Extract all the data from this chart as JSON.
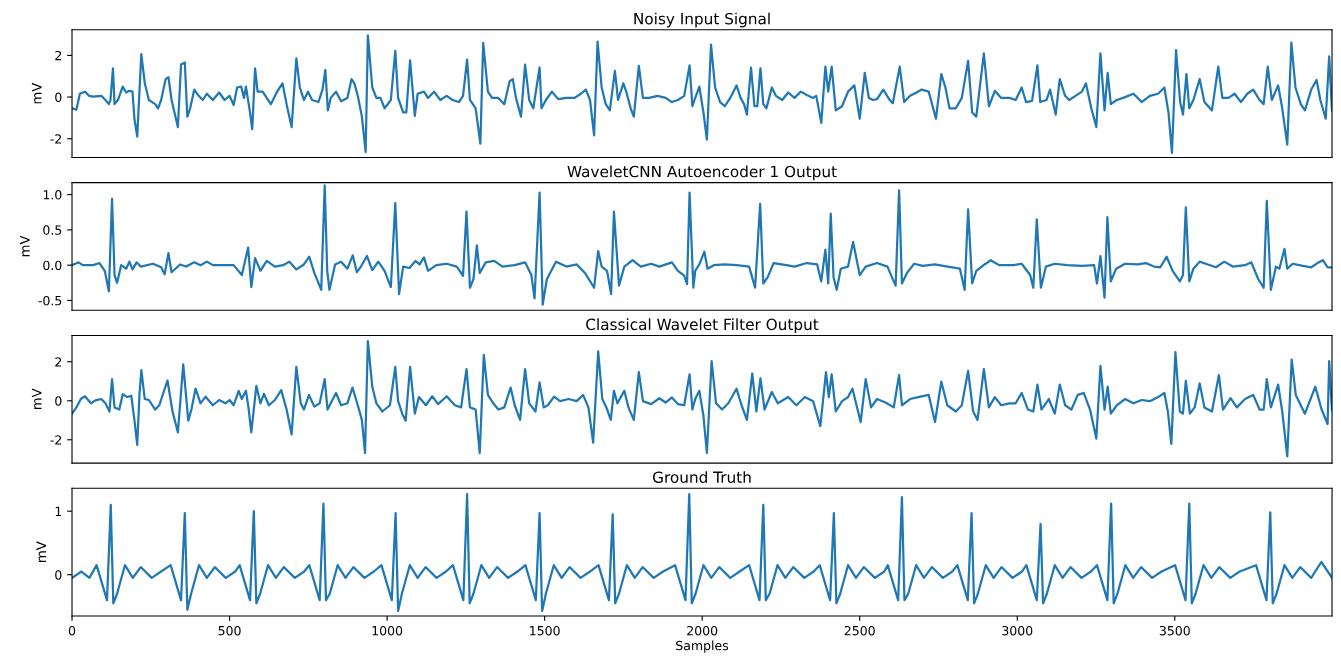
{
  "chart_data": [
    {
      "type": "line",
      "title": "Noisy Input Signal",
      "ylabel": "mV",
      "xlim": [
        0,
        3999
      ],
      "ylim": [
        -2.9,
        3.23
      ],
      "yticks": [
        -2,
        0,
        2
      ],
      "tick_labels": "y",
      "series": [
        {
          "color": "#1f77b4",
          "x": [
            0,
            14,
            25,
            41,
            54,
            67,
            93,
            106,
            117,
            122,
            130,
            135,
            146,
            161,
            172,
            182,
            192,
            198,
            207,
            214,
            220,
            231,
            244,
            264,
            273,
            283,
            297,
            306,
            316,
            336,
            346,
            358,
            366,
            375,
            388,
            402,
            415,
            428,
            447,
            467,
            484,
            500,
            513,
            524,
            537,
            546,
            552,
            563,
            572,
            581,
            589,
            605,
            618,
            631,
            651,
            668,
            681,
            697,
            712,
            723,
            736,
            749,
            762,
            782,
            795,
            804,
            812,
            821,
            838,
            854,
            874,
            887,
            896,
            907,
            920,
            932,
            939,
            953,
            966,
            979,
            992,
            1012,
            1026,
            1035,
            1051,
            1061,
            1073,
            1088,
            1097,
            1117,
            1130,
            1149,
            1169,
            1189,
            1208,
            1228,
            1241,
            1254,
            1263,
            1281,
            1296,
            1305,
            1320,
            1333,
            1353,
            1372,
            1389,
            1399,
            1409,
            1425,
            1438,
            1451,
            1464,
            1484,
            1490,
            1504,
            1523,
            1543,
            1569,
            1595,
            1615,
            1631,
            1644,
            1657,
            1668,
            1681,
            1694,
            1707,
            1723,
            1733,
            1750,
            1759,
            1773,
            1783,
            1799,
            1812,
            1832,
            1858,
            1884,
            1904,
            1923,
            1943,
            1960,
            1969,
            1978,
            1991,
            2004,
            2015,
            2028,
            2041,
            2057,
            2072,
            2089,
            2109,
            2122,
            2133,
            2142,
            2155,
            2166,
            2175,
            2185,
            2194,
            2204,
            2221,
            2234,
            2254,
            2273,
            2293,
            2313,
            2332,
            2352,
            2362,
            2378,
            2391,
            2400,
            2411,
            2424,
            2444,
            2463,
            2483,
            2500,
            2516,
            2529,
            2542,
            2555,
            2575,
            2595,
            2605,
            2627,
            2641,
            2660,
            2680,
            2697,
            2719,
            2742,
            2759,
            2772,
            2785,
            2805,
            2824,
            2844,
            2857,
            2870,
            2894,
            2910,
            2929,
            2949,
            2975,
            2995,
            3014,
            3028,
            3047,
            3064,
            3073,
            3093,
            3104,
            3122,
            3135,
            3152,
            3165,
            3185,
            3205,
            3218,
            3235,
            3251,
            3264,
            3277,
            3287,
            3297,
            3316,
            3336,
            3369,
            3395,
            3421,
            3447,
            3467,
            3480,
            3491,
            3504,
            3517,
            3526,
            3537,
            3546,
            3559,
            3579,
            3594,
            3618,
            3638,
            3651,
            3670,
            3690,
            3710,
            3730,
            3749,
            3769,
            3782,
            3795,
            3808,
            3828,
            3841,
            3857,
            3870,
            3883,
            3900,
            3913,
            3933,
            3950,
            3962,
            3979,
            3990,
            3999
          ],
          "values": [
            -0.54,
            -0.6,
            0.16,
            0.26,
            0.06,
            0.02,
            0.06,
            -0.14,
            -0.34,
            -0.14,
            1.38,
            -0.34,
            -0.14,
            0.5,
            0.22,
            0.3,
            0.26,
            -1.04,
            -1.9,
            0.26,
            2.06,
            0.66,
            -0.14,
            -0.34,
            -0.54,
            -0.14,
            0.86,
            0.96,
            -0.14,
            -1.44,
            1.56,
            1.66,
            -0.94,
            -0.54,
            0.36,
            0.06,
            -0.14,
            0.16,
            -0.14,
            0.22,
            -0.14,
            0.06,
            -0.38,
            0.46,
            0.5,
            -0.04,
            0.5,
            -0.54,
            -1.54,
            1.38,
            0.26,
            0.26,
            -0.04,
            -0.34,
            0.26,
            0.66,
            -0.34,
            -1.44,
            1.86,
            0.46,
            -0.14,
            0.26,
            -0.14,
            -0.24,
            0.36,
            1.3,
            -0.64,
            -0.04,
            0.26,
            -0.2,
            -0.04,
            0.86,
            0.66,
            0.06,
            -0.94,
            -2.64,
            2.96,
            0.46,
            -0.04,
            -0.04,
            -0.54,
            -0.14,
            2.22,
            -0.04,
            -0.74,
            -0.74,
            1.76,
            -0.9,
            0.16,
            0.26,
            -0.04,
            0.26,
            -0.14,
            0.06,
            -0.14,
            -0.24,
            0.06,
            1.8,
            -0.14,
            -0.54,
            -2.24,
            2.6,
            0.26,
            -0.04,
            -0.04,
            -0.34,
            0.76,
            0.86,
            -0.04,
            -0.94,
            1.56,
            -0.14,
            -0.54,
            1.42,
            -0.54,
            -0.14,
            0.26,
            -0.1,
            -0.04,
            -0.04,
            0.16,
            0.36,
            -0.14,
            -1.84,
            2.66,
            0.46,
            -0.34,
            -0.64,
            1.26,
            -0.14,
            0.66,
            0.26,
            -0.54,
            -0.94,
            1.5,
            -0.04,
            -0.04,
            0.06,
            -0.04,
            -0.24,
            -0.14,
            0.06,
            1.52,
            -0.44,
            -0.04,
            0.5,
            -0.74,
            -2.04,
            2.52,
            0.46,
            -0.24,
            -0.44,
            -0.04,
            0.56,
            -0.04,
            -0.34,
            -0.84,
            1.42,
            -0.44,
            -0.44,
            1.38,
            -0.34,
            -0.54,
            0.46,
            0.06,
            -0.14,
            0.22,
            -0.04,
            0.26,
            0.1,
            -0.04,
            0.06,
            -1.24,
            1.46,
            0.26,
            1.46,
            -0.64,
            -0.44,
            0.26,
            0.56,
            -1.04,
            1.16,
            -0.04,
            -0.14,
            -0.1,
            0.36,
            -0.14,
            -0.3,
            1.46,
            -0.24,
            0.06,
            0.22,
            0.36,
            0.26,
            -1.04,
            1.1,
            0.46,
            -0.54,
            -0.54,
            -0.04,
            1.74,
            -0.74,
            -0.94,
            2.1,
            -0.44,
            0.3,
            -0.04,
            -0.04,
            -0.14,
            0.46,
            -0.24,
            -0.18,
            1.52,
            -0.24,
            -0.14,
            0.36,
            -0.84,
            0.86,
            0.06,
            -0.14,
            0.06,
            0.26,
            0.66,
            -0.54,
            -1.44,
            2.1,
            -0.64,
            1.16,
            -0.34,
            -0.14,
            -0.04,
            0.16,
            -0.24,
            0.06,
            0.16,
            0.46,
            -0.74,
            -2.68,
            2.26,
            -0.24,
            -0.84,
            1.1,
            -0.54,
            -0.14,
            0.86,
            -0.24,
            -0.64,
            1.46,
            -0.04,
            -0.04,
            0.16,
            -0.24,
            0.16,
            0.36,
            -0.14,
            -0.34,
            1.46,
            -0.14,
            0.56,
            -0.54,
            -2.28,
            2.62,
            0.46,
            -0.34,
            -0.64,
            0.36,
            0.82,
            -0.14,
            -1.04,
            1.96,
            -0.64
          ]
        }
      ]
    },
    {
      "type": "line",
      "title": "WaveletCNN Autoencoder 1 Output",
      "ylabel": "mV",
      "xlim": [
        0,
        3999
      ],
      "ylim": [
        -0.64,
        1.17
      ],
      "yticks": [
        -0.5,
        {
          "value": 0,
          "label": "0.0"
        },
        0.5,
        {
          "value": 1,
          "label": "1.0"
        }
      ],
      "tick_labels": "y",
      "series": [
        {
          "color": "#1f77b4",
          "x": [
            0,
            21,
            34,
            67,
            87,
            104,
            117,
            127,
            135,
            143,
            156,
            172,
            182,
            192,
            205,
            218,
            257,
            283,
            294,
            306,
            316,
            343,
            362,
            388,
            408,
            428,
            447,
            513,
            539,
            559,
            569,
            581,
            598,
            618,
            644,
            670,
            690,
            712,
            736,
            753,
            769,
            791,
            802,
            810,
            817,
            835,
            854,
            874,
            891,
            904,
            917,
            936,
            953,
            972,
            992,
            1012,
            1026,
            1038,
            1051,
            1071,
            1090,
            1103,
            1117,
            1130,
            1156,
            1189,
            1221,
            1241,
            1252,
            1263,
            1274,
            1285,
            1294,
            1313,
            1340,
            1366,
            1405,
            1438,
            1458,
            1468,
            1484,
            1494,
            1507,
            1536,
            1569,
            1602,
            1628,
            1657,
            1670,
            1681,
            1698,
            1711,
            1720,
            1736,
            1753,
            1779,
            1805,
            1838,
            1864,
            1904,
            1923,
            1943,
            1952,
            1960,
            1972,
            1978,
            1991,
            2007,
            2017,
            2037,
            2070,
            2109,
            2149,
            2168,
            2184,
            2194,
            2208,
            2227,
            2267,
            2293,
            2332,
            2365,
            2378,
            2391,
            2400,
            2408,
            2417,
            2427,
            2440,
            2463,
            2479,
            2500,
            2519,
            2555,
            2588,
            2608,
            2614,
            2625,
            2634,
            2650,
            2673,
            2700,
            2739,
            2765,
            2818,
            2833,
            2844,
            2857,
            2870,
            2896,
            2916,
            2942,
            2988,
            3014,
            3041,
            3051,
            3062,
            3075,
            3091,
            3119,
            3159,
            3205,
            3244,
            3253,
            3264,
            3277,
            3286,
            3297,
            3314,
            3342,
            3382,
            3408,
            3434,
            3454,
            3474,
            3493,
            3516,
            3526,
            3535,
            3546,
            3559,
            3579,
            3605,
            3631,
            3657,
            3684,
            3723,
            3743,
            3765,
            3782,
            3792,
            3805,
            3821,
            3832,
            3848,
            3857,
            3874,
            3907,
            3933,
            3953,
            3970,
            3985,
            3999
          ],
          "values": [
            0,
            0.04,
            0,
            0,
            0.03,
            -0.08,
            -0.37,
            0.94,
            -0.14,
            -0.25,
            0,
            -0.05,
            0.05,
            -0.06,
            0.04,
            -0.02,
            0.02,
            -0.03,
            -0.13,
            0.17,
            -0.1,
            0.01,
            -0.02,
            0.04,
            0,
            0.05,
            0,
            0,
            -0.14,
            0.25,
            -0.31,
            0.1,
            -0.08,
            0.06,
            -0.02,
            0,
            0.05,
            -0.06,
            0.01,
            0.12,
            -0.11,
            -0.35,
            1.13,
            -0.08,
            -0.35,
            0.01,
            0.05,
            -0.05,
            0.14,
            -0.1,
            -0.02,
            0.13,
            -0.07,
            0.05,
            -0.08,
            -0.31,
            0.88,
            -0.41,
            -0.02,
            -0.04,
            0.06,
            0.01,
            0.11,
            -0.08,
            0,
            0.02,
            -0.02,
            -0.15,
            0.76,
            -0.32,
            -0.2,
            0.28,
            -0.11,
            0.04,
            0.06,
            -0.02,
            0,
            0.04,
            -0.14,
            -0.47,
            1.03,
            -0.56,
            -0.2,
            0.05,
            -0.02,
            0.01,
            -0.11,
            -0.32,
            0.2,
            -0.02,
            -0.08,
            -0.41,
            0.76,
            -0.29,
            -0.02,
            0.07,
            -0.02,
            0.02,
            -0.02,
            0.04,
            -0.08,
            -0.15,
            -0.27,
            1.03,
            -0.32,
            -0.08,
            0.01,
            0.19,
            -0.05,
            0,
            0.01,
            0,
            -0.02,
            -0.32,
            0.87,
            -0.26,
            -0.17,
            0.03,
            0,
            -0.02,
            0.03,
            0.01,
            -0.23,
            0.22,
            -0.26,
            0.73,
            -0.17,
            -0.35,
            -0.05,
            -0.02,
            0.33,
            -0.14,
            -0.02,
            0.03,
            -0.02,
            -0.23,
            -0.29,
            1.06,
            -0.26,
            -0.11,
            0.02,
            -0.01,
            0.01,
            -0.01,
            -0.05,
            -0.35,
            0.79,
            -0.26,
            -0.08,
            0.01,
            0.07,
            0,
            0,
            0.02,
            -0.14,
            -0.32,
            0.65,
            -0.32,
            -0.02,
            0.02,
            0,
            -0.01,
            0,
            -0.26,
            0.13,
            -0.46,
            0.68,
            -0.23,
            -0.05,
            0.02,
            0.01,
            0.03,
            -0.02,
            -0.03,
            0.12,
            -0.08,
            -0.23,
            -0.14,
            0.82,
            -0.23,
            -0.05,
            0.05,
            0.01,
            -0.03,
            0.05,
            -0.02,
            0,
            0.04,
            -0.2,
            -0.32,
            0.91,
            -0.35,
            -0.02,
            -0.05,
            0.23,
            -0.05,
            0.02,
            -0.01,
            -0.03,
            0.03,
            0.07,
            -0.03,
            -0.03
          ]
        }
      ]
    },
    {
      "type": "line",
      "title": "Classical Wavelet Filter Output",
      "ylabel": "mV",
      "xlim": [
        0,
        3999
      ],
      "ylim": [
        -3.2,
        3.35
      ],
      "yticks": [
        -2,
        0,
        2
      ],
      "tick_labels": "y",
      "series": [
        {
          "color": "#1f77b4",
          "x": [
            0,
            14,
            28,
            41,
            60,
            74,
            93,
            106,
            119,
            127,
            135,
            150,
            161,
            175,
            188,
            198,
            207,
            214,
            220,
            231,
            244,
            264,
            277,
            303,
            319,
            336,
            353,
            369,
            379,
            392,
            408,
            424,
            447,
            467,
            487,
            500,
            513,
            529,
            539,
            552,
            560,
            569,
            585,
            598,
            609,
            625,
            644,
            664,
            681,
            697,
            712,
            726,
            736,
            752,
            769,
            786,
            802,
            811,
            821,
            838,
            854,
            874,
            890,
            907,
            920,
            930,
            939,
            953,
            966,
            985,
            1009,
            1026,
            1035,
            1048,
            1059,
            1073,
            1088,
            1101,
            1123,
            1143,
            1162,
            1189,
            1215,
            1235,
            1252,
            1263,
            1281,
            1294,
            1307,
            1320,
            1337,
            1353,
            1372,
            1392,
            1405,
            1422,
            1438,
            1451,
            1471,
            1484,
            1497,
            1510,
            1530,
            1549,
            1576,
            1602,
            1622,
            1639,
            1654,
            1670,
            1683,
            1696,
            1710,
            1720,
            1731,
            1753,
            1766,
            1783,
            1799,
            1812,
            1838,
            1864,
            1884,
            1904,
            1923,
            1943,
            1960,
            1969,
            1978,
            1991,
            2004,
            2015,
            2030,
            2044,
            2063,
            2083,
            2109,
            2125,
            2142,
            2159,
            2172,
            2185,
            2198,
            2221,
            2240,
            2273,
            2299,
            2326,
            2352,
            2375,
            2393,
            2402,
            2411,
            2424,
            2444,
            2463,
            2477,
            2503,
            2519,
            2536,
            2555,
            2582,
            2608,
            2625,
            2634,
            2660,
            2686,
            2719,
            2739,
            2759,
            2778,
            2805,
            2824,
            2844,
            2860,
            2874,
            2894,
            2910,
            2929,
            2949,
            2975,
            2995,
            3014,
            3034,
            3051,
            3064,
            3077,
            3100,
            3119,
            3135,
            3152,
            3172,
            3192,
            3211,
            3231,
            3251,
            3264,
            3277,
            3287,
            3297,
            3316,
            3342,
            3369,
            3395,
            3421,
            3447,
            3467,
            3478,
            3489,
            3502,
            3516,
            3526,
            3535,
            3548,
            3563,
            3579,
            3594,
            3618,
            3640,
            3653,
            3677,
            3697,
            3723,
            3749,
            3769,
            3782,
            3792,
            3805,
            3828,
            3841,
            3857,
            3871,
            3884,
            3913,
            3946,
            3966,
            3985,
            3990,
            3999
          ],
          "values": [
            -0.66,
            -0.34,
            0.09,
            0.23,
            -0.13,
            0.02,
            0.09,
            -0.13,
            -0.55,
            1.11,
            -0.34,
            -0.45,
            0.34,
            0.19,
            0.26,
            -0.98,
            -2.26,
            0.3,
            1.57,
            0.09,
            0.04,
            -0.45,
            -0.23,
            1.04,
            -0.55,
            -1.62,
            1.87,
            -1.02,
            -0.45,
            0.62,
            -0.13,
            0.21,
            -0.23,
            0.04,
            -0.13,
            0.04,
            -0.23,
            0.51,
            0.09,
            0.51,
            -0.34,
            -1.62,
            0.77,
            -0.13,
            0.36,
            -0.23,
            0.04,
            0.55,
            -0.45,
            -1.72,
            1.74,
            -0.13,
            -0.45,
            0.3,
            -0.3,
            -0.13,
            1.11,
            -0.45,
            -0.13,
            0.4,
            -0.23,
            -0.13,
            0.68,
            -0.23,
            -0.98,
            -2.68,
            3.06,
            0.72,
            -0.13,
            -0.55,
            -0.23,
            1.74,
            -0.02,
            -0.66,
            -1.02,
            1.74,
            -0.66,
            0.19,
            -0.23,
            0.23,
            -0.17,
            0.23,
            -0.23,
            -0.34,
            1.62,
            -0.34,
            -0.45,
            -2.68,
            2.36,
            0.3,
            -0.13,
            -0.45,
            -0.34,
            0.68,
            -0.23,
            -0.98,
            1.62,
            -0.13,
            -0.55,
            0.94,
            -0.34,
            -0.23,
            0.21,
            -0.02,
            0.09,
            -0.02,
            0.3,
            -0.34,
            -2.15,
            2.53,
            0.09,
            -0.34,
            -0.98,
            0.51,
            -0.13,
            0.51,
            -0.34,
            -0.98,
            1.47,
            -0.02,
            -0.17,
            0.13,
            -0.09,
            0.17,
            -0.17,
            -0.23,
            1.36,
            -0.45,
            0.09,
            0.51,
            -0.77,
            -2.68,
            2.04,
            -0.13,
            -0.45,
            -0.13,
            0.62,
            -0.23,
            -0.98,
            1.4,
            -0.55,
            1.15,
            -0.45,
            0.45,
            -0.13,
            0.19,
            -0.23,
            0.19,
            -0.02,
            -1.3,
            1.47,
            0.19,
            1.36,
            -0.55,
            -0.02,
            0.19,
            0.62,
            -1.09,
            1.11,
            -0.34,
            0.09,
            -0.09,
            -0.34,
            1.32,
            -0.23,
            0.09,
            0.19,
            0.3,
            -1.09,
            0.98,
            -0.23,
            -0.55,
            -0.23,
            1.53,
            -0.55,
            -0.98,
            1.62,
            -0.34,
            0.19,
            -0.23,
            -0.13,
            -0.13,
            0.4,
            -0.45,
            -0.55,
            0.83,
            -0.45,
            0.09,
            -0.66,
            0.83,
            -0.23,
            -0.45,
            0.3,
            0.4,
            -0.45,
            -1.94,
            1.79,
            -0.45,
            0.72,
            -0.66,
            -0.23,
            0.09,
            -0.13,
            0.04,
            -0.02,
            0.19,
            0.4,
            -0.55,
            -2.21,
            2.49,
            -0.55,
            -0.66,
            1.02,
            -0.66,
            -0.34,
            0.89,
            -0.34,
            -0.55,
            1.32,
            -0.45,
            0.13,
            -0.34,
            0.09,
            0.3,
            -0.45,
            -0.45,
            1.11,
            -0.34,
            0.83,
            -0.55,
            -2.85,
            2.11,
            0.3,
            -0.66,
            0.72,
            -0.45,
            -1.19,
            2.04,
            -0.5
          ]
        }
      ]
    },
    {
      "type": "line",
      "title": "Ground Truth",
      "xlabel": "Samples",
      "ylabel": "mV",
      "xlim": [
        0,
        3999
      ],
      "ylim": [
        -0.65,
        1.36
      ],
      "xticks": [
        0,
        500,
        1000,
        1500,
        2000,
        2500,
        3000,
        3500
      ],
      "yticks": [
        0,
        1
      ],
      "series": [
        {
          "color": "#1f77b4",
          "x": [
            0,
            30,
            55,
            78,
            111,
            123,
            131,
            143,
            168,
            193,
            218,
            253,
            283,
            313,
            346,
            358,
            366,
            378,
            403,
            428,
            453,
            488,
            518,
            532,
            565,
            577,
            585,
            597,
            622,
            647,
            672,
            707,
            737,
            753,
            786,
            798,
            806,
            818,
            843,
            868,
            893,
            928,
            958,
            982,
            1015,
            1027,
            1035,
            1047,
            1072,
            1097,
            1122,
            1157,
            1187,
            1209,
            1242,
            1254,
            1262,
            1274,
            1299,
            1324,
            1349,
            1384,
            1414,
            1439,
            1472,
            1484,
            1492,
            1504,
            1529,
            1554,
            1579,
            1614,
            1644,
            1671,
            1704,
            1716,
            1724,
            1736,
            1761,
            1786,
            1811,
            1846,
            1876,
            1914,
            1947,
            1959,
            1967,
            1979,
            2004,
            2029,
            2054,
            2089,
            2119,
            2149,
            2182,
            2194,
            2202,
            2214,
            2239,
            2264,
            2289,
            2324,
            2354,
            2373,
            2406,
            2418,
            2426,
            2438,
            2463,
            2488,
            2513,
            2548,
            2578,
            2589,
            2622,
            2634,
            2642,
            2654,
            2679,
            2704,
            2729,
            2764,
            2794,
            2810,
            2843,
            2855,
            2863,
            2875,
            2900,
            2925,
            2950,
            2985,
            3015,
            3029,
            3062,
            3074,
            3082,
            3094,
            3119,
            3144,
            3169,
            3204,
            3234,
            3253,
            3286,
            3298,
            3306,
            3318,
            3343,
            3368,
            3393,
            3428,
            3458,
            3501,
            3534,
            3546,
            3554,
            3566,
            3591,
            3616,
            3641,
            3676,
            3706,
            3758,
            3791,
            3803,
            3811,
            3823,
            3848,
            3873,
            3898,
            3933,
            3965,
            3999
          ],
          "values": [
            -0.05,
            0.05,
            -0.05,
            0.15,
            -0.4,
            1.1,
            -0.45,
            -0.3,
            0.15,
            -0.05,
            0.12,
            -0.05,
            0.05,
            0.15,
            -0.4,
            0.97,
            -0.55,
            -0.3,
            0.15,
            -0.05,
            0.12,
            -0.05,
            0.05,
            0.15,
            -0.4,
            1.0,
            -0.45,
            -0.3,
            0.15,
            -0.05,
            0.12,
            -0.05,
            0.05,
            0.15,
            -0.4,
            1.12,
            -0.4,
            -0.3,
            0.15,
            -0.05,
            0.12,
            -0.05,
            0.05,
            0.15,
            -0.4,
            0.97,
            -0.57,
            -0.3,
            0.15,
            -0.05,
            0.12,
            -0.05,
            0.05,
            0.15,
            -0.4,
            1.27,
            -0.45,
            -0.3,
            0.15,
            -0.05,
            0.12,
            -0.05,
            0.05,
            0.15,
            -0.4,
            0.97,
            -0.57,
            -0.3,
            0.15,
            -0.05,
            0.12,
            -0.05,
            0.05,
            0.15,
            -0.4,
            0.95,
            -0.45,
            -0.3,
            0.15,
            -0.05,
            0.12,
            -0.05,
            0.05,
            0.15,
            -0.4,
            1.27,
            -0.45,
            -0.3,
            0.15,
            -0.05,
            0.12,
            -0.05,
            0.05,
            0.15,
            -0.4,
            1.1,
            -0.4,
            -0.3,
            0.15,
            -0.05,
            0.12,
            -0.05,
            0.05,
            0.15,
            -0.4,
            0.97,
            -0.45,
            -0.3,
            0.15,
            -0.05,
            0.12,
            -0.05,
            0.05,
            0.15,
            -0.4,
            1.22,
            -0.4,
            -0.3,
            0.15,
            -0.05,
            0.12,
            -0.05,
            0.05,
            0.15,
            -0.4,
            0.97,
            -0.45,
            -0.3,
            0.15,
            -0.05,
            0.12,
            -0.05,
            0.05,
            0.15,
            -0.4,
            0.8,
            -0.45,
            -0.3,
            0.15,
            -0.05,
            0.12,
            -0.05,
            0.05,
            0.15,
            -0.4,
            1.12,
            -0.45,
            -0.3,
            0.15,
            -0.05,
            0.12,
            -0.05,
            0.05,
            0.15,
            -0.4,
            1.12,
            -0.45,
            -0.3,
            0.15,
            -0.05,
            0.12,
            -0.05,
            0.05,
            0.15,
            -0.4,
            0.98,
            -0.45,
            -0.3,
            0.15,
            -0.05,
            0.12,
            -0.05,
            0.2,
            -0.05
          ]
        }
      ]
    }
  ]
}
